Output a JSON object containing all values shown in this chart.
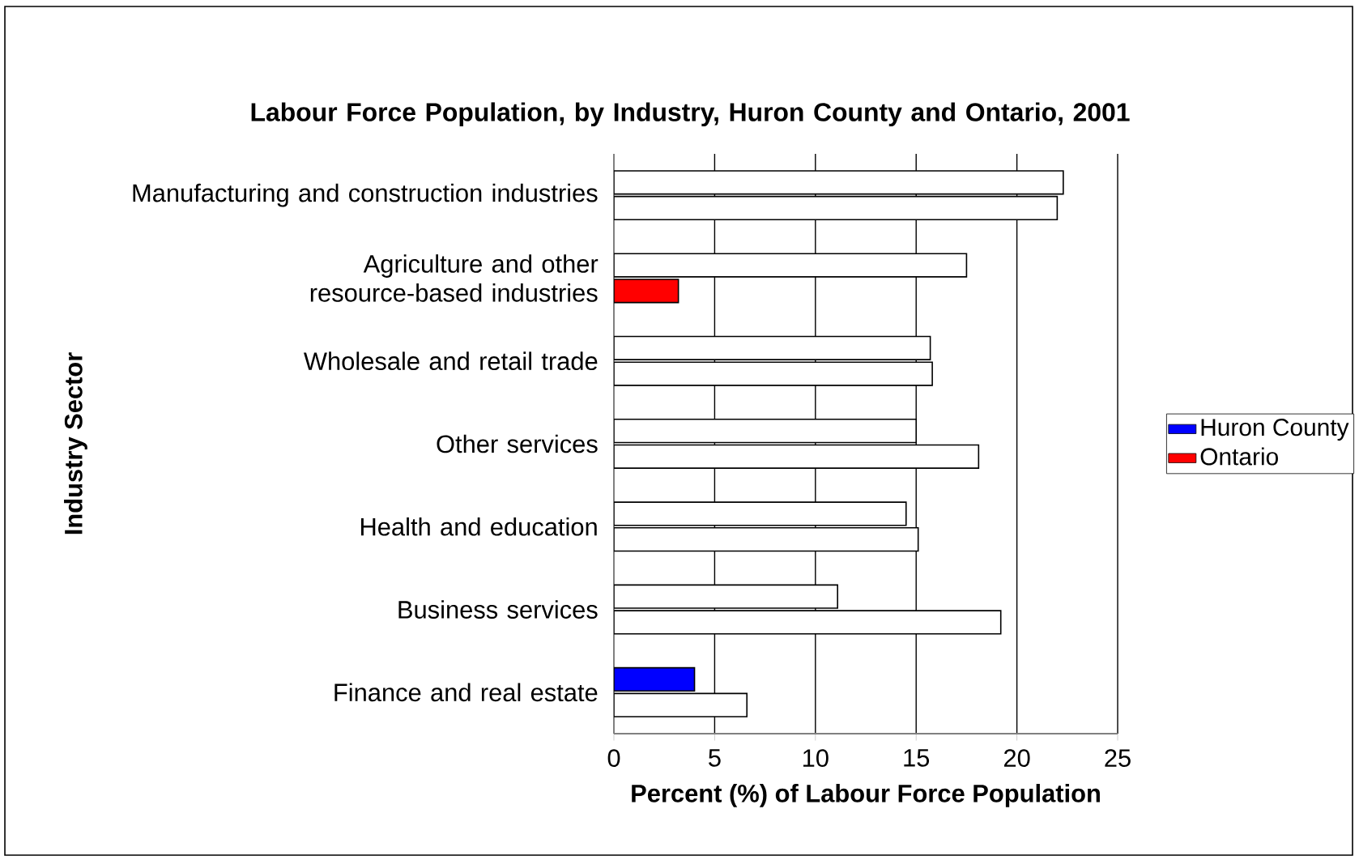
{
  "chart_data": {
    "type": "bar",
    "orientation": "horizontal",
    "title": "Labour Force Population, by Industry, Huron County and Ontario, 2001",
    "xlabel": "Percent (%) of Labour Force Population",
    "ylabel": "Industry Sector",
    "categories": [
      "Manufacturing and construction industries",
      "Agriculture and other resource-based industries",
      "Wholesale and retail trade",
      "Other services",
      "Health and education",
      "Business services",
      "Finance and real estate"
    ],
    "series": [
      {
        "name": "Huron County",
        "color": "#0000ff",
        "colors": [
          "#ffffff",
          "#ffffff",
          "#ffffff",
          "#ffffff",
          "#ffffff",
          "#ffffff",
          "#0000ff"
        ],
        "values": [
          22.3,
          17.5,
          15.7,
          15.0,
          14.5,
          11.1,
          4.0
        ]
      },
      {
        "name": "Ontario",
        "color": "#ff0000",
        "colors": [
          "#ffffff",
          "#ff0000",
          "#ffffff",
          "#ffffff",
          "#ffffff",
          "#ffffff",
          "#ffffff"
        ],
        "values": [
          22.0,
          3.2,
          15.8,
          18.1,
          15.1,
          19.2,
          6.6
        ]
      }
    ],
    "xlim": [
      0,
      25
    ],
    "xticks": [
      0,
      5,
      10,
      15,
      20,
      25
    ],
    "grid": "x",
    "legend": "right"
  }
}
